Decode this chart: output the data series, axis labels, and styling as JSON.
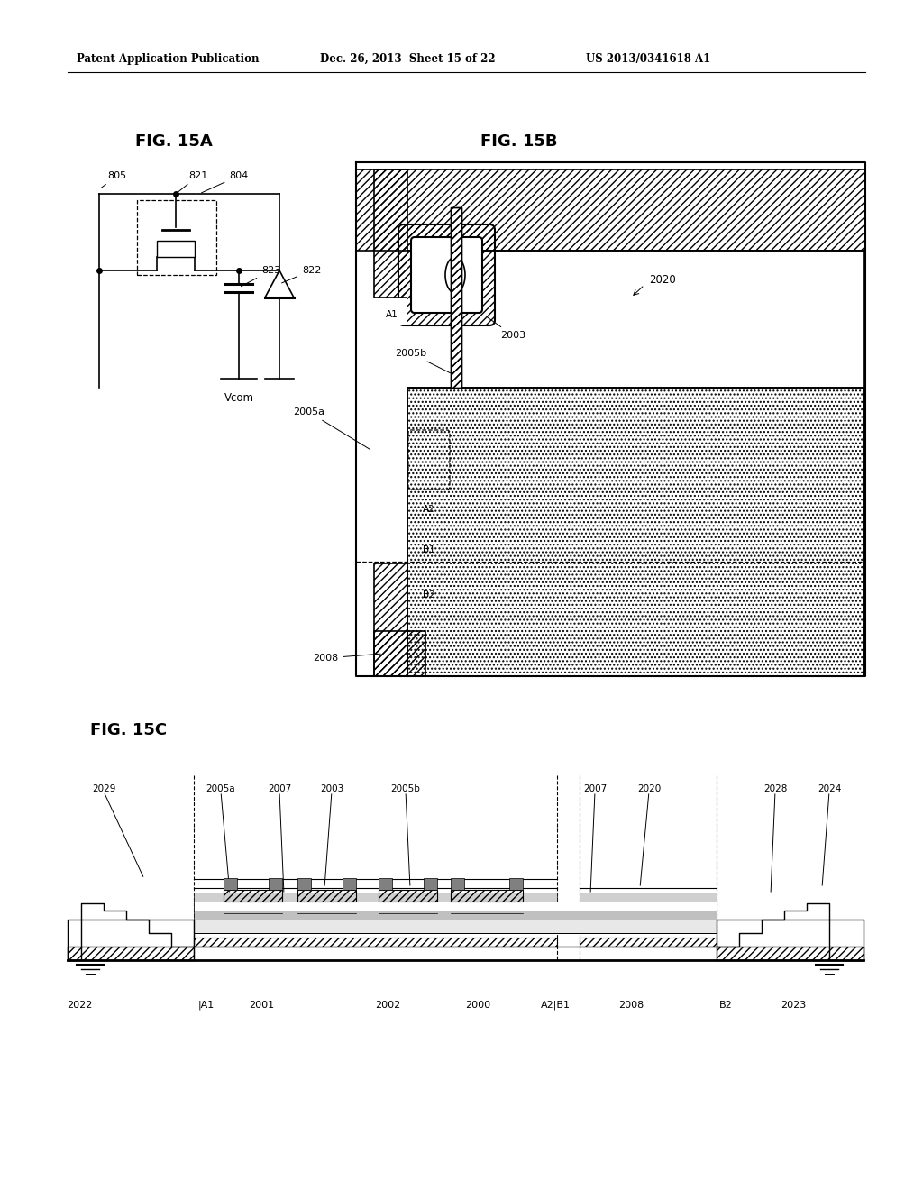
{
  "header_left": "Patent Application Publication",
  "header_date": "Dec. 26, 2013  Sheet 15 of 22",
  "header_right": "US 2013/0341618 A1",
  "fig15a_title": "FIG. 15A",
  "fig15b_title": "FIG. 15B",
  "fig15c_title": "FIG. 15C",
  "background_color": "#ffffff",
  "line_color": "#000000"
}
